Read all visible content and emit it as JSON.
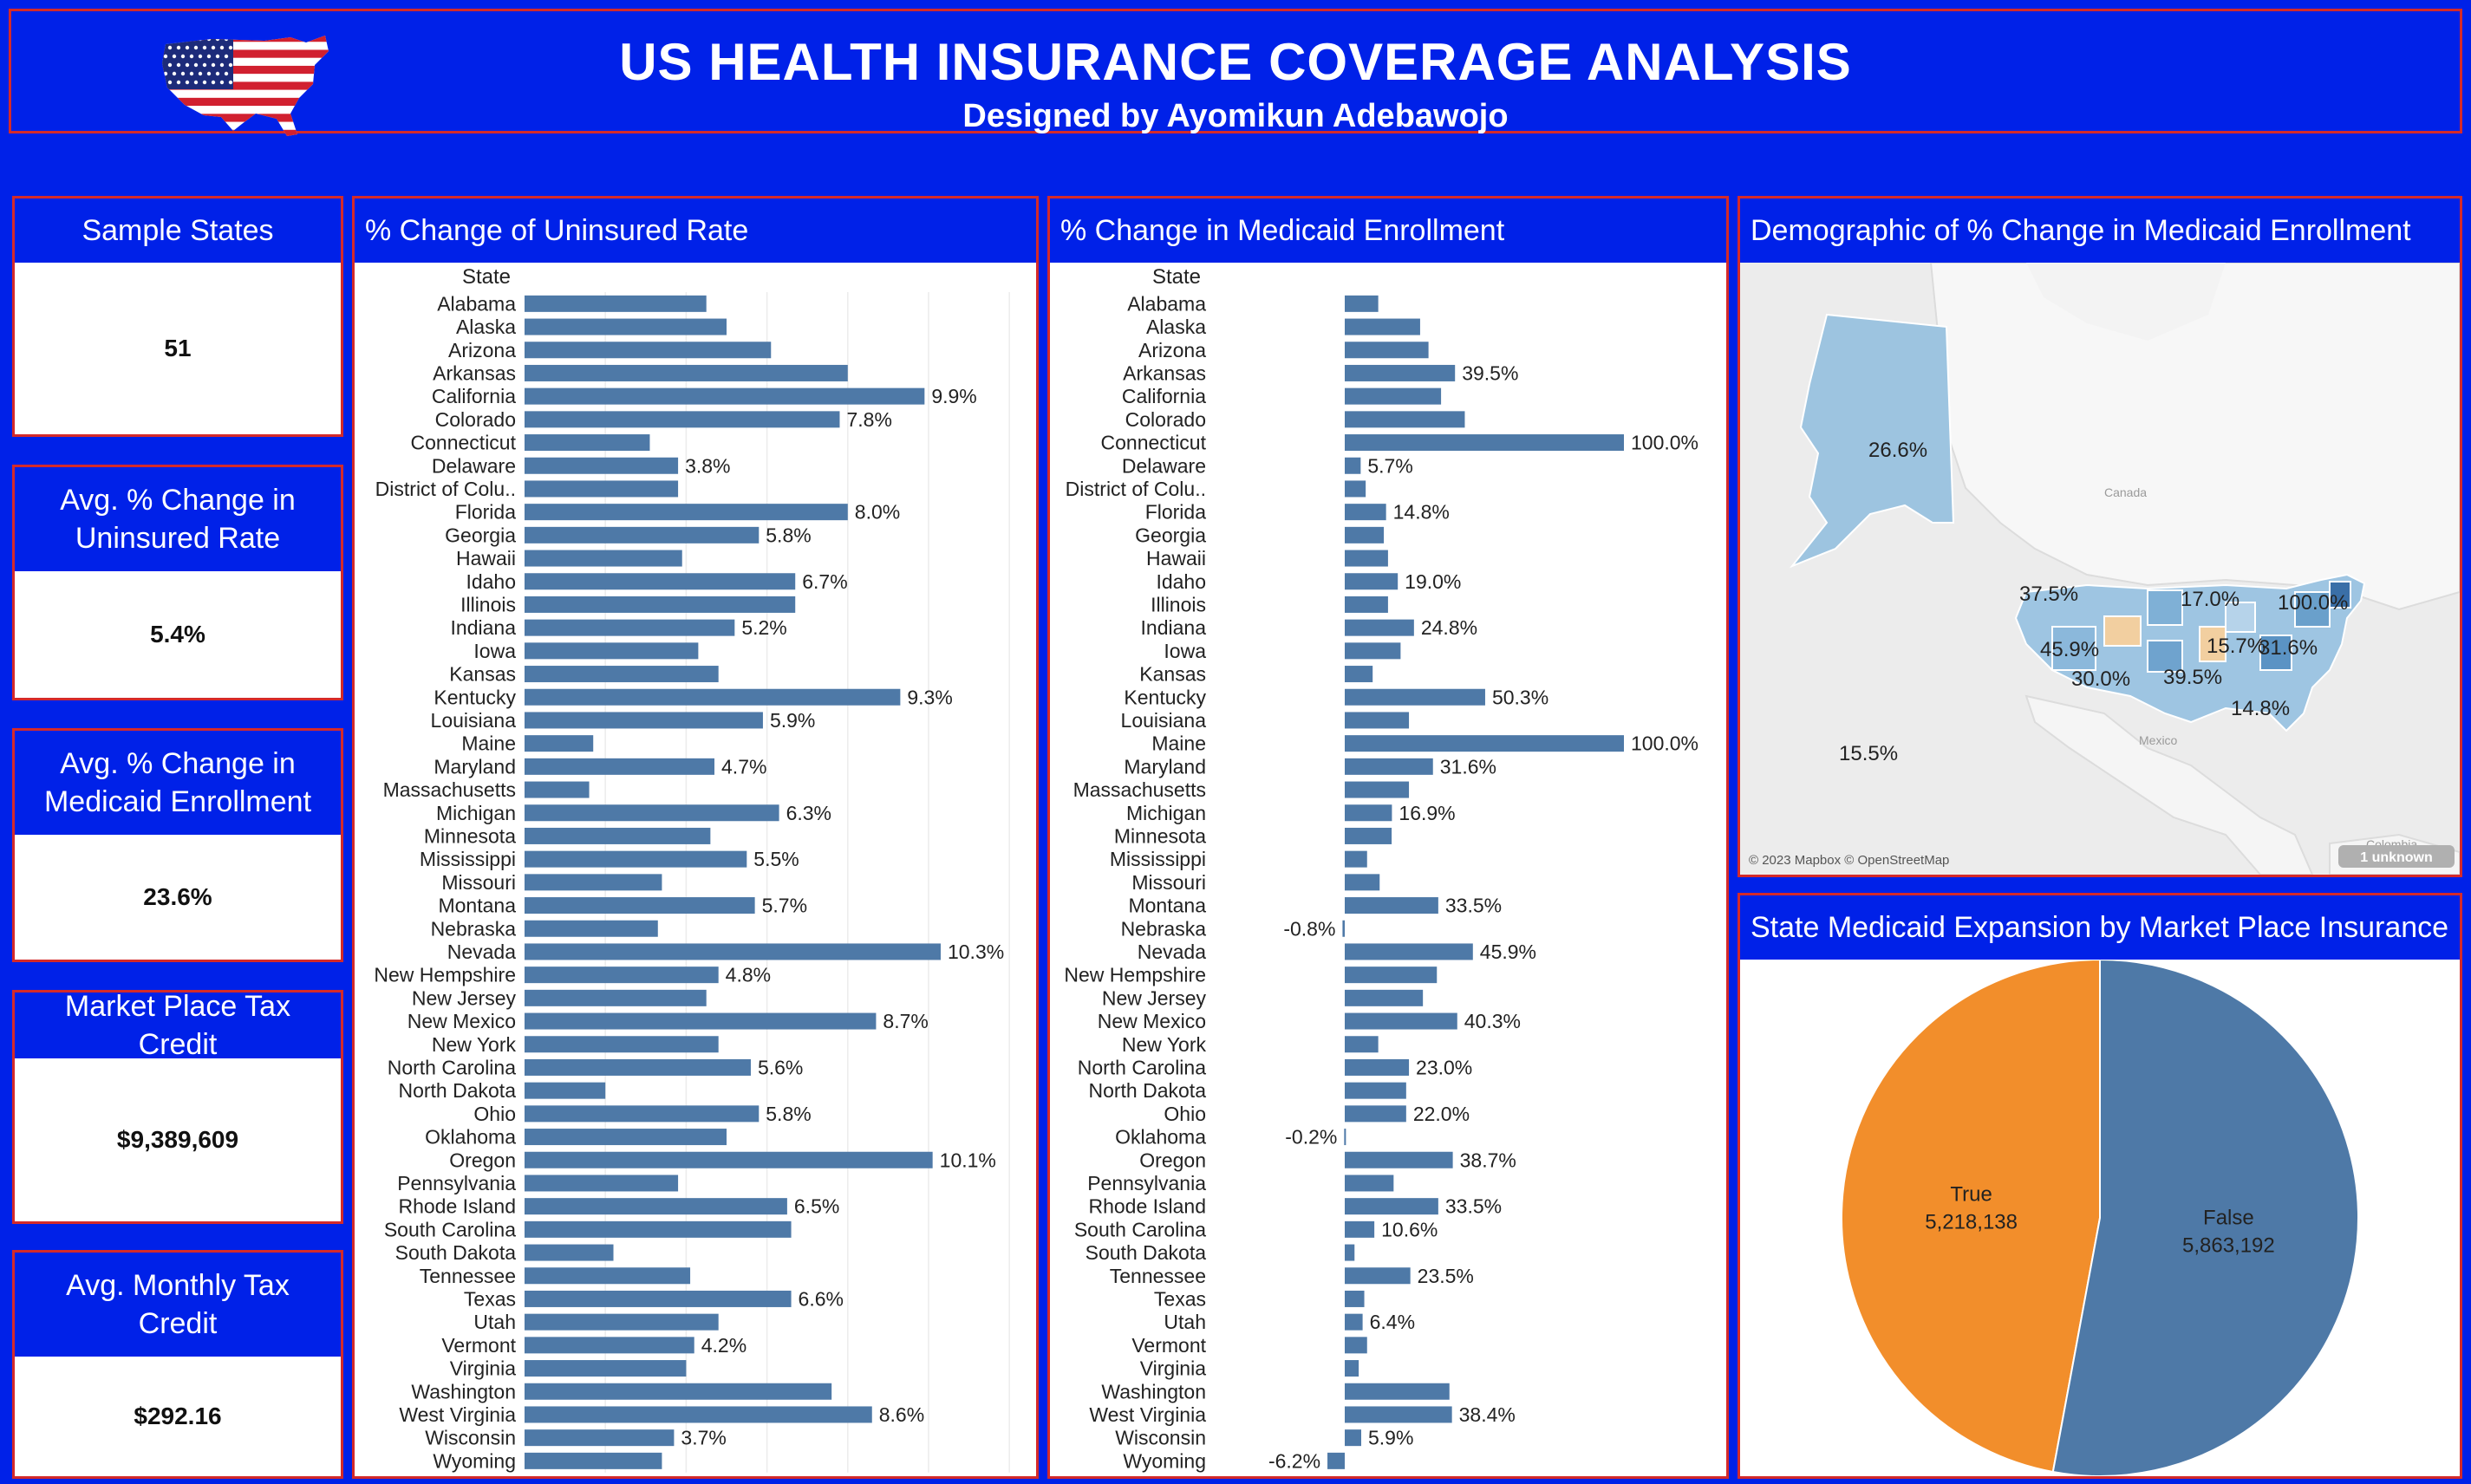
{
  "header": {
    "title": "US HEALTH INSURANCE COVERAGE ANALYSIS",
    "subtitle": "Designed by Ayomikun Adebawojo",
    "logo_icon": "us-flag-map-icon"
  },
  "kpis": [
    {
      "label": "Sample States",
      "value": "51"
    },
    {
      "label": "Avg. % Change in Uninsured Rate",
      "value": "5.4%"
    },
    {
      "label": "Avg. % Change in Medicaid Enrollment",
      "value": "23.6%"
    },
    {
      "label": "Market Place Tax Credit",
      "value": "$9,389,609"
    },
    {
      "label": "Avg. Monthly Tax Credit",
      "value": "$292.16"
    }
  ],
  "panels": {
    "uninsured": "% Change of Uninsured Rate",
    "medicaid": "% Change in Medicaid Enrollment",
    "map": "Demographic of % Change in Medicaid Enrollment",
    "pie": "State Medicaid Expansion by Market Place Insurance"
  },
  "colors": {
    "bar": "#4e79a7",
    "pie_true": "#f28e2b",
    "pie_false": "#4e79a7",
    "background": "#0021e8",
    "border": "#d42a2a"
  },
  "map": {
    "attribution": "© 2023 Mapbox © OpenStreetMap",
    "unknown_badge": "1 unknown",
    "place_labels": [
      "Canada",
      "Mexico",
      "Colombia"
    ],
    "labels": [
      "26.6%",
      "37.5%",
      "17.0%",
      "100.0%",
      "45.9%",
      "15.7%",
      "31.6%",
      "30.0%",
      "39.5%",
      "14.8%",
      "15.5%"
    ]
  },
  "chart_data": [
    {
      "type": "bar",
      "orientation": "horizontal",
      "title": "% Change of Uninsured Rate",
      "ylabel": "State",
      "categories": [
        "Alabama",
        "Alaska",
        "Arizona",
        "Arkansas",
        "California",
        "Colorado",
        "Connecticut",
        "Delaware",
        "District of Colu..",
        "Florida",
        "Georgia",
        "Hawaii",
        "Idaho",
        "Illinois",
        "Indiana",
        "Iowa",
        "Kansas",
        "Kentucky",
        "Louisiana",
        "Maine",
        "Maryland",
        "Massachusetts",
        "Michigan",
        "Minnesota",
        "Mississippi",
        "Missouri",
        "Montana",
        "Nebraska",
        "Nevada",
        "New Hempshire",
        "New Jersey",
        "New Mexico",
        "New York",
        "North Carolina",
        "North Dakota",
        "Ohio",
        "Oklahoma",
        "Oregon",
        "Pennsylvania",
        "Rhode Island",
        "South Carolina",
        "South Dakota",
        "Tennessee",
        "Texas",
        "Utah",
        "Vermont",
        "Virginia",
        "Washington",
        "West Virginia",
        "Wisconsin",
        "Wyoming"
      ],
      "values": [
        4.5,
        5.0,
        6.1,
        8.0,
        9.9,
        7.8,
        3.1,
        3.8,
        3.8,
        8.0,
        5.8,
        3.9,
        6.7,
        6.7,
        5.2,
        4.3,
        4.8,
        9.3,
        5.9,
        1.7,
        4.7,
        1.6,
        6.3,
        4.6,
        5.5,
        3.4,
        5.7,
        3.3,
        10.3,
        4.8,
        4.5,
        8.7,
        4.8,
        5.6,
        2.0,
        5.8,
        5.0,
        10.1,
        3.8,
        6.5,
        6.6,
        2.2,
        4.1,
        6.6,
        4.8,
        4.2,
        4.0,
        7.6,
        8.6,
        3.7,
        3.4
      ],
      "data_labels": [
        "",
        "",
        "",
        "",
        "9.9%",
        "7.8%",
        "",
        "3.8%",
        "",
        "8.0%",
        "5.8%",
        "",
        "6.7%",
        "",
        "5.2%",
        "",
        "",
        "9.3%",
        "5.9%",
        "",
        "4.7%",
        "",
        "6.3%",
        "",
        "5.5%",
        "",
        "5.7%",
        "",
        "10.3%",
        "4.8%",
        "",
        "8.7%",
        "",
        "5.6%",
        "",
        "5.8%",
        "",
        "10.1%",
        "",
        "6.5%",
        "",
        "",
        "",
        "6.6%",
        "",
        "4.2%",
        "",
        "",
        "8.6%",
        "3.7%",
        ""
      ],
      "xlim": [
        0,
        12
      ]
    },
    {
      "type": "bar",
      "orientation": "horizontal",
      "title": "% Change in Medicaid Enrollment",
      "ylabel": "State",
      "categories": [
        "Alabama",
        "Alaska",
        "Arizona",
        "Arkansas",
        "California",
        "Colorado",
        "Connecticut",
        "Delaware",
        "District of Colu..",
        "Florida",
        "Georgia",
        "Hawaii",
        "Idaho",
        "Illinois",
        "Indiana",
        "Iowa",
        "Kansas",
        "Kentucky",
        "Louisiana",
        "Maine",
        "Maryland",
        "Massachusetts",
        "Michigan",
        "Minnesota",
        "Mississippi",
        "Missouri",
        "Montana",
        "Nebraska",
        "Nevada",
        "New Hempshire",
        "New Jersey",
        "New Mexico",
        "New York",
        "North Carolina",
        "North Dakota",
        "Ohio",
        "Oklahoma",
        "Oregon",
        "Pennsylvania",
        "Rhode Island",
        "South Carolina",
        "South Dakota",
        "Tennessee",
        "Texas",
        "Utah",
        "Vermont",
        "Virginia",
        "Washington",
        "West Virginia",
        "Wisconsin",
        "Wyoming"
      ],
      "values": [
        12.0,
        27.0,
        30.0,
        39.5,
        34.5,
        43.0,
        100.0,
        5.7,
        7.5,
        14.8,
        14.0,
        15.5,
        19.0,
        15.5,
        24.8,
        20.0,
        10.0,
        50.3,
        23.0,
        100.0,
        31.6,
        23.0,
        16.9,
        16.8,
        8.0,
        12.5,
        33.5,
        -0.8,
        45.9,
        33.0,
        28.0,
        40.3,
        12.0,
        23.0,
        22.0,
        22.0,
        -0.2,
        38.7,
        17.5,
        33.5,
        10.6,
        3.5,
        23.5,
        7.0,
        6.4,
        8.0,
        5.0,
        37.5,
        38.4,
        5.9,
        -6.2
      ],
      "data_labels": [
        "",
        "",
        "",
        "39.5%",
        "",
        "",
        "100.0%",
        "5.7%",
        "",
        "14.8%",
        "",
        "",
        "19.0%",
        "",
        "24.8%",
        "",
        "",
        "50.3%",
        "",
        "100.0%",
        "31.6%",
        "",
        "16.9%",
        "",
        "",
        "",
        "33.5%",
        "-0.8%",
        "45.9%",
        "",
        "",
        "40.3%",
        "",
        "23.0%",
        "",
        "22.0%",
        "-0.2%",
        "38.7%",
        "",
        "33.5%",
        "10.6%",
        "",
        "23.5%",
        "",
        "6.4%",
        "",
        "",
        "",
        "38.4%",
        "5.9%",
        "-6.2%"
      ],
      "xlim": [
        -8,
        100
      ]
    },
    {
      "type": "pie",
      "title": "State Medicaid Expansion by Market Place Insurance",
      "categories": [
        "True",
        "False"
      ],
      "values": [
        5218138,
        5863192
      ],
      "value_labels": [
        "5,218,138",
        "5,863,192"
      ]
    }
  ]
}
